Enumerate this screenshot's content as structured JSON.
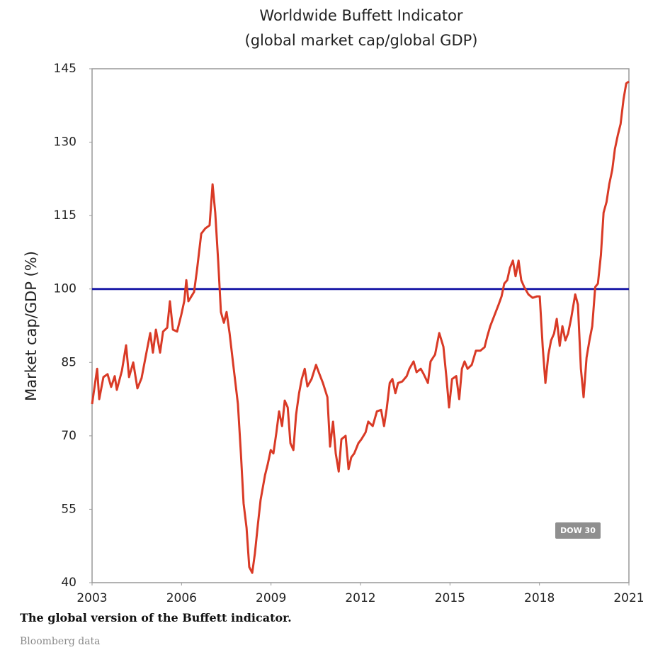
{
  "chart_data": {
    "type": "line",
    "title": "Worldwide Buffett Indicator",
    "subtitle": "(global market cap/global GDP)",
    "y_label": "Market cap/GDP (%)",
    "xlim": [
      2003,
      2021
    ],
    "xticks": [
      2003,
      2006,
      2009,
      2012,
      2015,
      2018,
      2021
    ],
    "ylim": [
      40,
      145
    ],
    "yticks": [
      40,
      55,
      70,
      85,
      100,
      115,
      130,
      145
    ],
    "reference_line": {
      "value": 100,
      "color": "#1c1ca8"
    },
    "badge": "DOW 30",
    "series": [
      {
        "color": "#d93a26",
        "x": [
          2003.0,
          2003.17,
          2003.24,
          2003.38,
          2003.52,
          2003.64,
          2003.76,
          2003.83,
          2004.0,
          2004.14,
          2004.24,
          2004.38,
          2004.52,
          2004.66,
          2004.81,
          2004.95,
          2005.04,
          2005.14,
          2005.28,
          2005.38,
          2005.52,
          2005.61,
          2005.71,
          2005.85,
          2005.99,
          2006.09,
          2006.16,
          2006.23,
          2006.33,
          2006.42,
          2006.52,
          2006.66,
          2006.8,
          2006.94,
          2007.04,
          2007.13,
          2007.23,
          2007.32,
          2007.42,
          2007.51,
          2007.61,
          2007.75,
          2007.89,
          2007.99,
          2008.08,
          2008.18,
          2008.27,
          2008.37,
          2008.46,
          2008.56,
          2008.65,
          2008.8,
          2008.89,
          2008.99,
          2009.08,
          2009.18,
          2009.27,
          2009.37,
          2009.46,
          2009.56,
          2009.65,
          2009.75,
          2009.84,
          2009.94,
          2010.03,
          2010.13,
          2010.22,
          2010.36,
          2010.51,
          2010.6,
          2010.74,
          2010.89,
          2010.98,
          2011.08,
          2011.17,
          2011.27,
          2011.36,
          2011.5,
          2011.6,
          2011.69,
          2011.79,
          2011.93,
          2012.03,
          2012.17,
          2012.26,
          2012.41,
          2012.55,
          2012.69,
          2012.79,
          2012.88,
          2012.98,
          2013.07,
          2013.17,
          2013.26,
          2013.4,
          2013.55,
          2013.64,
          2013.78,
          2013.88,
          2014.02,
          2014.12,
          2014.26,
          2014.35,
          2014.5,
          2014.64,
          2014.78,
          2014.88,
          2014.97,
          2015.07,
          2015.21,
          2015.31,
          2015.4,
          2015.49,
          2015.59,
          2015.73,
          2015.87,
          2016.02,
          2016.16,
          2016.25,
          2016.35,
          2016.49,
          2016.63,
          2016.73,
          2016.82,
          2016.92,
          2017.01,
          2017.11,
          2017.2,
          2017.3,
          2017.39,
          2017.49,
          2017.63,
          2017.77,
          2017.92,
          2018.01,
          2018.11,
          2018.2,
          2018.3,
          2018.39,
          2018.49,
          2018.58,
          2018.68,
          2018.77,
          2018.87,
          2018.96,
          2019.06,
          2019.2,
          2019.29,
          2019.39,
          2019.48,
          2019.58,
          2019.68,
          2019.77,
          2019.87,
          2019.96,
          2020.06,
          2020.15,
          2020.25,
          2020.34,
          2020.44,
          2020.53,
          2020.63,
          2020.72,
          2020.82,
          2020.91,
          2021.0
        ],
        "values": [
          76.5,
          83.7,
          77.5,
          82,
          82.6,
          80,
          82.2,
          79.4,
          83.3,
          88.5,
          82,
          85,
          79.7,
          81.8,
          86.6,
          91,
          87,
          91.7,
          87,
          91.3,
          92.1,
          97.5,
          91.7,
          91.3,
          94.7,
          97.5,
          101.8,
          97.5,
          98.5,
          99.4,
          104,
          111.3,
          112.4,
          113,
          121.4,
          115.6,
          105.5,
          95.3,
          93.1,
          95.3,
          91,
          83.7,
          76.5,
          66.4,
          56.2,
          51.2,
          43.2,
          42,
          46,
          51.9,
          56.9,
          62,
          64.2,
          67.1,
          66.4,
          70.7,
          75,
          72,
          77.2,
          75.8,
          68.5,
          67.1,
          74.3,
          78.7,
          81.6,
          83.7,
          80.1,
          81.6,
          84.5,
          83,
          80.8,
          77.9,
          67.8,
          72.9,
          66.4,
          62.7,
          69.3,
          70,
          63.2,
          65.6,
          66.4,
          68.5,
          69.3,
          70.7,
          72.9,
          72,
          75,
          75.3,
          72,
          75.6,
          80.8,
          81.6,
          78.7,
          80.8,
          81.1,
          82.2,
          83.7,
          85.2,
          83,
          83.7,
          82.6,
          80.8,
          85.2,
          86.6,
          91,
          88.2,
          82,
          75.8,
          81.6,
          82.2,
          77.5,
          83.7,
          85.2,
          83.7,
          84.5,
          87.4,
          87.4,
          88.1,
          90.3,
          92.4,
          94.6,
          96.8,
          98.5,
          101.1,
          101.8,
          104.3,
          105.8,
          102.6,
          105.8,
          101.8,
          100.4,
          98.9,
          98.2,
          98.5,
          98.5,
          88.1,
          80.8,
          86.6,
          89.5,
          90.9,
          93.9,
          88.4,
          92.4,
          89.5,
          90.9,
          93.9,
          98.9,
          96.8,
          83.7,
          77.9,
          86,
          89.6,
          92.4,
          100.4,
          101.1,
          106.9,
          115.6,
          117.8,
          121.4,
          124.3,
          128.6,
          131.5,
          133.7,
          138.8,
          142,
          142.4
        ]
      }
    ]
  },
  "caption": "The global version of the Buffett indicator.",
  "source": "Bloomberg data"
}
